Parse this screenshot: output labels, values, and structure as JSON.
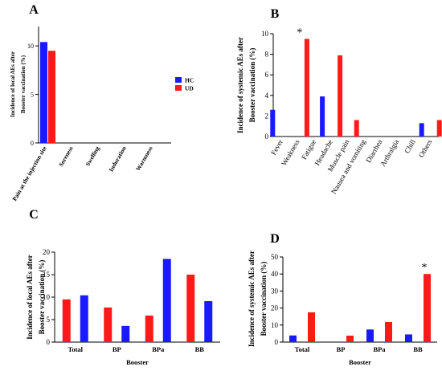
{
  "colors": {
    "HC": "#1a1aff",
    "UD": "#ff3333",
    "red": "#ff1a1a",
    "blue": "#1a1aff"
  },
  "chart_data": [
    {
      "panel": "A",
      "type": "bar",
      "ylabel": "Incidence of local AEs after Booster vaccination (%)",
      "categories": [
        "Pain at the injection site",
        "Soreness",
        "Swelling",
        "Induration",
        "Warmness"
      ],
      "series": [
        {
          "name": "HC",
          "color": "blue",
          "values": [
            10.4,
            0,
            0,
            0,
            0
          ]
        },
        {
          "name": "UD",
          "color": "red",
          "values": [
            9.5,
            0,
            0,
            0,
            0
          ]
        }
      ],
      "ylim": [
        0,
        12
      ],
      "yticks": [
        0,
        5,
        10
      ],
      "legend": "right"
    },
    {
      "panel": "B",
      "type": "bar",
      "ylabel": "Incidence of systemic AEs after Booster vaccination (%)",
      "categories": [
        "Fever",
        "Weakness",
        "Fatigue",
        "Headache",
        "Muscle pain",
        "Nausea and vomiting",
        "Diarrhea",
        "Arthralgia",
        "Chill",
        "Others"
      ],
      "series": [
        {
          "name": "HC",
          "color": "blue",
          "values": [
            2.6,
            0,
            0,
            3.9,
            0,
            0,
            0,
            0,
            0,
            1.3
          ]
        },
        {
          "name": "UD",
          "color": "red",
          "values": [
            0,
            9.5,
            0,
            7.9,
            1.6,
            0,
            0,
            0,
            0,
            1.6
          ]
        }
      ],
      "ylim": [
        0,
        10
      ],
      "yticks": [
        0,
        2,
        4,
        6,
        8,
        10
      ],
      "annotations": [
        {
          "category": "Weakness",
          "text": "*"
        }
      ]
    },
    {
      "panel": "C",
      "type": "bar",
      "xlabel": "Booster",
      "ylabel": "Incidence of local AEs after Booster vaccination (%)",
      "categories": [
        "Total",
        "BP",
        "BPa",
        "BB"
      ],
      "series": [
        {
          "color": "red",
          "values": [
            9.5,
            7.7,
            5.9,
            15.0
          ]
        },
        {
          "color": "blue",
          "values": [
            10.4,
            3.6,
            18.5,
            9.1
          ]
        }
      ],
      "ylim": [
        0,
        20
      ],
      "yticks": [
        0,
        5,
        10,
        15,
        20
      ]
    },
    {
      "panel": "D",
      "type": "bar",
      "xlabel": "Booster",
      "ylabel": "Incidence of systemic AEs after Booster vaccination (%)",
      "categories": [
        "Total",
        "BP",
        "BPa",
        "BB"
      ],
      "series": [
        {
          "color": "blue",
          "values": [
            3.9,
            0,
            7.4,
            4.5
          ]
        },
        {
          "color": "red",
          "values": [
            17.5,
            3.8,
            11.8,
            40.0
          ]
        }
      ],
      "ylim": [
        0,
        50
      ],
      "yticks": [
        0,
        10,
        20,
        30,
        40,
        50
      ],
      "annotations": [
        {
          "category": "BB",
          "text": "*"
        }
      ]
    }
  ]
}
